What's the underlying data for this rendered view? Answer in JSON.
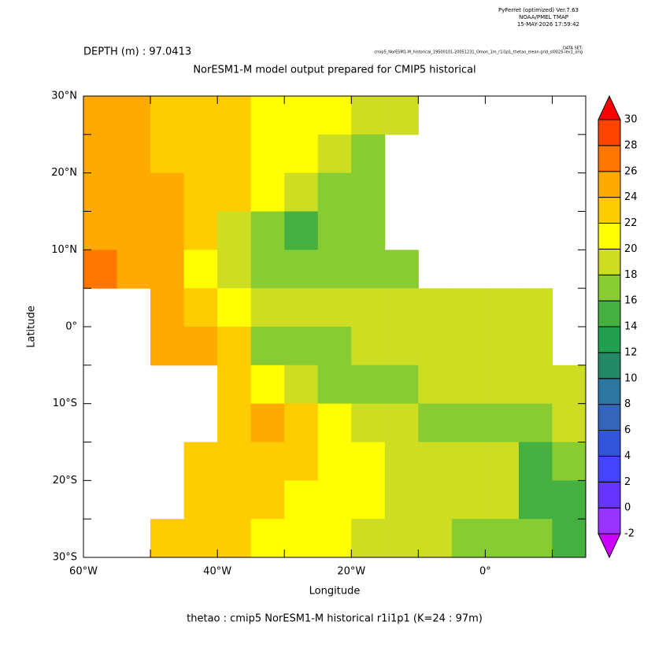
{
  "header": {
    "software": "PyFerret (optimized) Ver.7.63",
    "lab": "NOAA/PMEL TMAP",
    "date": "15-MAY-2026 17:59:42",
    "dataset_label": "DATA SET:",
    "dataset": "cmip5_NorESM1-M_historical_19500101-20051231_Omon_1m_r1i1p1_thetao_mean.grid_sl0025-lev1_orig"
  },
  "chart_data": {
    "type": "heatmap",
    "subtitle": "DEPTH (m) : 97.0413",
    "title": "NorESM1-M model output prepared for CMIP5 historical",
    "x_label": "Longitude",
    "y_label": "Latitude",
    "caption": "thetao : cmip5 NorESM1-M historical r1i1p1   (K=24 : 97m)",
    "xlim": [
      -60,
      15
    ],
    "ylim": [
      -30,
      30
    ],
    "xticks": [
      {
        "value": -60,
        "label": "60°W"
      },
      {
        "value": -40,
        "label": "40°W"
      },
      {
        "value": -20,
        "label": "20°W"
      },
      {
        "value": 0,
        "label": "0°"
      }
    ],
    "xminor": [
      -50,
      -30,
      -10,
      10
    ],
    "yticks": [
      {
        "value": -30,
        "label": "30°S"
      },
      {
        "value": -20,
        "label": "20°S"
      },
      {
        "value": -10,
        "label": "10°S"
      },
      {
        "value": 0,
        "label": "0°"
      },
      {
        "value": 10,
        "label": "10°N"
      },
      {
        "value": 20,
        "label": "20°N"
      },
      {
        "value": 30,
        "label": "30°N"
      }
    ],
    "yminor": [
      -25,
      -15,
      -5,
      5,
      15,
      25
    ],
    "grid": false,
    "lon": [
      -57.5,
      -52.5,
      -47.5,
      -42.5,
      -37.5,
      -32.5,
      -27.5,
      -22.5,
      -17.5,
      -12.5,
      -7.5,
      -2.5,
      2.5,
      7.5,
      12.5
    ],
    "lat": [
      27.5,
      22.5,
      17.5,
      12.5,
      7.5,
      2.5,
      -2.5,
      -7.5,
      -12.5,
      -17.5,
      -22.5,
      -27.5
    ],
    "z": [
      [
        24.5,
        24,
        23,
        23,
        22.5,
        21.5,
        20.5,
        20,
        19,
        18,
        null,
        null,
        null,
        null,
        null
      ],
      [
        24.5,
        24,
        23,
        23,
        22.5,
        21.5,
        20.5,
        19.5,
        17,
        null,
        null,
        null,
        null,
        null,
        null
      ],
      [
        24.5,
        24.5,
        24,
        23,
        22,
        20,
        18.5,
        17.5,
        17,
        null,
        null,
        null,
        null,
        null,
        null
      ],
      [
        25,
        24.5,
        24,
        22,
        19,
        17,
        15,
        16,
        17,
        null,
        null,
        null,
        null,
        null,
        null
      ],
      [
        26,
        25.5,
        25,
        21,
        19,
        17.5,
        17,
        17,
        17,
        17.5,
        null,
        null,
        null,
        null,
        null
      ],
      [
        null,
        null,
        25,
        23,
        21,
        19,
        18,
        18,
        18,
        18.5,
        19,
        19.5,
        19.5,
        19.5,
        null
      ],
      [
        null,
        null,
        24,
        24,
        22,
        17,
        16,
        17,
        18,
        18.5,
        19,
        19.5,
        19.5,
        19.5,
        null
      ],
      [
        null,
        null,
        null,
        null,
        22,
        21,
        19,
        16,
        17,
        17.5,
        18,
        18.5,
        19,
        19.5,
        19
      ],
      [
        null,
        null,
        null,
        null,
        23,
        24,
        23,
        21,
        19.5,
        18.5,
        17.5,
        17,
        17.5,
        16,
        18
      ],
      [
        null,
        null,
        null,
        23,
        23.5,
        23,
        22,
        21.5,
        20.5,
        19.5,
        19,
        18.5,
        18,
        15.5,
        17
      ],
      [
        null,
        null,
        null,
        23.5,
        23,
        22.5,
        21.5,
        21,
        20,
        19.5,
        19,
        18.5,
        18,
        15,
        14
      ],
      [
        null,
        null,
        23,
        23,
        22,
        21.5,
        20.5,
        20,
        19,
        18.5,
        18,
        17.5,
        17,
        16.5,
        15
      ]
    ],
    "levels": [
      -2,
      0,
      2,
      4,
      6,
      8,
      10,
      12,
      14,
      16,
      18,
      20,
      22,
      24,
      26,
      28,
      30
    ],
    "colors": [
      "#cc00ff",
      "#9933ff",
      "#6633ff",
      "#4444ff",
      "#3355dd",
      "#3366bb",
      "#2a77a0",
      "#228866",
      "#22a050",
      "#44b040",
      "#88cc33",
      "#ccdd22",
      "#ffff00",
      "#ffcc00",
      "#ffaa00",
      "#ff7700",
      "#ff4400",
      "#ff0000"
    ]
  }
}
